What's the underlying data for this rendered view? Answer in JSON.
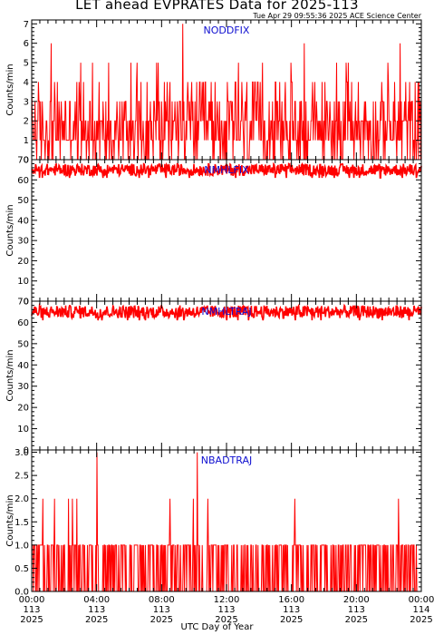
{
  "title": "LET ahead EVPRATES Data for 2025-113",
  "timestamp": "Tue Apr 29 09:55:36 2025 ACE Science Center",
  "xlabel": "UTC Day of Year",
  "colors": {
    "data": "#ff0000",
    "label": "#1010d0",
    "axis": "#000000"
  },
  "x_ticks": [
    {
      "time": "00:00",
      "day": "113",
      "year": "2025"
    },
    {
      "time": "04:00",
      "day": "113",
      "year": "2025"
    },
    {
      "time": "08:00",
      "day": "113",
      "year": "2025"
    },
    {
      "time": "12:00",
      "day": "113",
      "year": "2025"
    },
    {
      "time": "16:00",
      "day": "113",
      "year": "2025"
    },
    {
      "time": "20:00",
      "day": "113",
      "year": "2025"
    },
    {
      "time": "00:00",
      "day": "114",
      "year": "2025"
    }
  ],
  "chart_data": [
    {
      "type": "line",
      "label": "NODDFIX",
      "ylabel": "Counts/min",
      "ylim": [
        0,
        7.2
      ],
      "yticks": [
        "0",
        "1",
        "2",
        "3",
        "4",
        "5",
        "6",
        "7"
      ],
      "xlim_hours": [
        0,
        24
      ],
      "typical_range": [
        0,
        4
      ],
      "mean": 1.6,
      "spikes": [
        {
          "hour": 9.3,
          "value": 7
        },
        {
          "hour": 1.2,
          "value": 6
        },
        {
          "hour": 16.8,
          "value": 6
        },
        {
          "hour": 22.7,
          "value": 6
        }
      ]
    },
    {
      "type": "line",
      "label": "NMHLFIX",
      "ylabel": "Counts/min",
      "ylim": [
        0,
        70
      ],
      "yticks": [
        "0",
        "10",
        "20",
        "30",
        "40",
        "50",
        "60",
        "70"
      ],
      "xlim_hours": [
        0,
        24
      ],
      "typical_range": [
        62,
        68
      ],
      "mean": 65
    },
    {
      "type": "line",
      "label": "NMHLTRAJ",
      "ylabel": "Counts/min",
      "ylim": [
        0,
        70
      ],
      "yticks": [
        "0",
        "10",
        "20",
        "30",
        "40",
        "50",
        "60",
        "70"
      ],
      "xlim_hours": [
        0,
        24
      ],
      "typical_range": [
        62,
        68
      ],
      "mean": 65
    },
    {
      "type": "line",
      "label": "NBADTRAJ",
      "ylabel": "Counts/min",
      "ylim": [
        0,
        3.05
      ],
      "yticks": [
        "0.0",
        "0.5",
        "1.0",
        "1.5",
        "2.0",
        "2.5",
        "3.0"
      ],
      "xlim_hours": [
        0,
        24
      ],
      "typical_range": [
        0,
        1
      ],
      "mean": 0.5,
      "spikes": [
        {
          "hour": 4.0,
          "value": 3
        },
        {
          "hour": 10.2,
          "value": 3
        },
        {
          "hour": 0.7,
          "value": 2
        },
        {
          "hour": 8.5,
          "value": 2
        },
        {
          "hour": 16.2,
          "value": 2
        },
        {
          "hour": 22.6,
          "value": 2
        }
      ]
    }
  ]
}
